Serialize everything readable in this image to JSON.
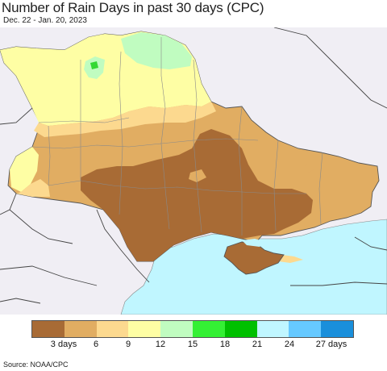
{
  "header": {
    "title": "Number of Rain Days in past 30 days (CPC)",
    "subtitle": "Dec. 22 - Jan. 20, 2023"
  },
  "map": {
    "colors": {
      "sea": "#c0f6ff",
      "land_background": "#f0eef4",
      "border": "#555555",
      "subregion_border": "#888888",
      "brown": "#a86b35",
      "tan": "#e1ad62",
      "light_orange": "#fcd98f",
      "pale_yellow": "#fefea4",
      "light_green": "#c0fcc0",
      "green": "#34d834"
    }
  },
  "legend": {
    "colors": [
      "#a86b35",
      "#e1ad62",
      "#fcd98f",
      "#fefea4",
      "#c0fcc0",
      "#34f034",
      "#00c000",
      "#c0f6ff",
      "#66c9ff",
      "#1a8fdb"
    ],
    "labels": [
      "3 days",
      "6",
      "9",
      "12",
      "15",
      "18",
      "21",
      "24",
      "27 days"
    ]
  },
  "footer": {
    "source": "Source: NOAA/CPC"
  }
}
